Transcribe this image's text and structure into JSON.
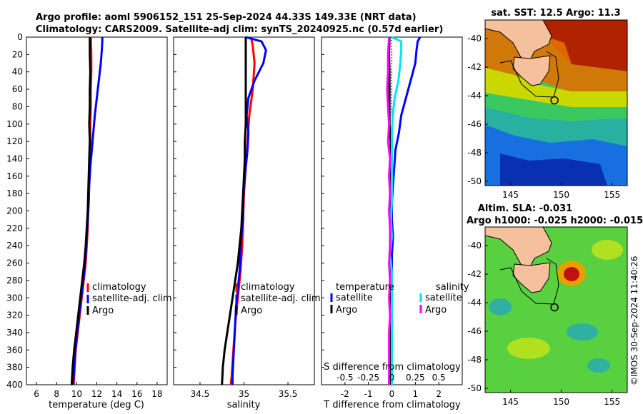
{
  "header": {
    "line1": "Argo profile: aoml 5906152_151 25-Sep-2024 44.33S 149.33E (NRT data)",
    "line2": "Climatology: CARS2009. Satellite-adj clim: synTS_20240925.nc (0.57d earlier)"
  },
  "colors": {
    "climatology": "#ff0000",
    "satellite": "#0000ff",
    "argo": "#000000",
    "sat_t_diff": "#0000ff",
    "sat_s_diff": "#00e5ee",
    "argo_s_diff": "#ff00ff",
    "land": "#f5c09c"
  },
  "chart_data": [
    {
      "id": "temperature",
      "type": "line",
      "xlabel": "temperature (deg C)",
      "ylabel": "",
      "xlim": [
        5,
        19
      ],
      "ylim": [
        400,
        0
      ],
      "xticks": [
        6,
        8,
        10,
        12,
        14,
        16,
        18
      ],
      "yticks": [
        0,
        20,
        40,
        60,
        80,
        100,
        120,
        140,
        160,
        180,
        200,
        220,
        240,
        260,
        280,
        300,
        320,
        340,
        360,
        380,
        400
      ],
      "legend": [
        "climatology",
        "satellite-adj. clim",
        "Argo"
      ],
      "series": [
        {
          "name": "climatology",
          "color": "#ff0000",
          "depth": [
            0,
            20,
            40,
            60,
            80,
            100,
            120,
            140,
            160,
            180,
            200,
            220,
            240,
            260,
            280,
            300,
            320,
            340,
            360,
            380,
            400
          ],
          "values": [
            11.4,
            11.45,
            11.45,
            11.4,
            11.4,
            11.35,
            11.35,
            11.3,
            11.25,
            11.2,
            11.15,
            11.1,
            11.0,
            10.9,
            10.7,
            10.5,
            10.3,
            10.1,
            9.9,
            9.8,
            9.7
          ]
        },
        {
          "name": "satellite-adj. clim",
          "color": "#0000ff",
          "depth": [
            0,
            5,
            15,
            30,
            50,
            70,
            90,
            110,
            130,
            150,
            170,
            190,
            210,
            230,
            250,
            270,
            290,
            310,
            330,
            350,
            370,
            390,
            400
          ],
          "values": [
            12.55,
            12.55,
            12.5,
            12.4,
            12.2,
            12.0,
            11.8,
            11.65,
            11.5,
            11.35,
            11.25,
            11.2,
            11.1,
            11.0,
            10.9,
            10.75,
            10.55,
            10.35,
            10.15,
            9.95,
            9.8,
            9.7,
            9.65
          ]
        },
        {
          "name": "Argo",
          "color": "#000000",
          "depth": [
            0,
            20,
            40,
            60,
            80,
            100,
            120,
            140,
            160,
            180,
            200,
            220,
            240,
            260,
            280,
            300,
            320,
            340,
            360,
            380,
            400
          ],
          "values": [
            11.3,
            11.3,
            11.35,
            11.3,
            11.3,
            11.25,
            11.3,
            11.25,
            11.2,
            11.15,
            11.1,
            11.0,
            10.9,
            10.75,
            10.55,
            10.35,
            10.15,
            9.95,
            9.75,
            9.6,
            9.5
          ]
        }
      ]
    },
    {
      "id": "salinity",
      "type": "line",
      "xlabel": "salinity",
      "ylabel": "",
      "xlim": [
        34.2,
        35.8
      ],
      "ylim": [
        400,
        0
      ],
      "xticks": [
        34.5,
        35,
        35.5
      ],
      "yticks": [
        0,
        20,
        40,
        60,
        80,
        100,
        120,
        140,
        160,
        180,
        200,
        220,
        240,
        260,
        280,
        300,
        320,
        340,
        360,
        380,
        400
      ],
      "legend": [
        "climatology",
        "satellite-adj. clim",
        "Argo"
      ],
      "series": [
        {
          "name": "climatology",
          "color": "#ff0000",
          "depth": [
            0,
            10,
            30,
            60,
            90,
            120,
            150,
            180,
            210,
            240,
            270,
            300,
            330,
            360,
            390,
            400
          ],
          "values": [
            35.08,
            35.1,
            35.12,
            35.1,
            35.06,
            35.04,
            35.02,
            35.0,
            34.99,
            34.98,
            34.96,
            34.93,
            34.9,
            34.88,
            34.86,
            34.85
          ]
        },
        {
          "name": "satellite-adj. clim",
          "color": "#0000ff",
          "depth": [
            0,
            5,
            15,
            30,
            50,
            70,
            90,
            110,
            130,
            150,
            170,
            190,
            210,
            230,
            250,
            270,
            290,
            310,
            330,
            350,
            370,
            390,
            400
          ],
          "values": [
            35.02,
            35.2,
            35.25,
            35.22,
            35.12,
            35.05,
            35.03,
            35.05,
            35.04,
            35.02,
            35.0,
            34.99,
            34.99,
            34.97,
            34.96,
            34.95,
            34.93,
            34.91,
            34.9,
            34.89,
            34.88,
            34.87,
            34.87
          ]
        },
        {
          "name": "Argo",
          "color": "#000000",
          "depth": [
            0,
            20,
            40,
            60,
            80,
            100,
            120,
            140,
            160,
            180,
            200,
            220,
            240,
            260,
            280,
            300,
            320,
            340,
            360,
            380,
            400
          ],
          "values": [
            35.02,
            35.02,
            35.02,
            35.02,
            35.02,
            35.02,
            35.01,
            35.01,
            35.0,
            34.99,
            34.98,
            34.97,
            34.95,
            34.93,
            34.9,
            34.87,
            34.84,
            34.81,
            34.78,
            34.76,
            34.75
          ]
        }
      ]
    },
    {
      "id": "difference",
      "type": "line",
      "xlabel": "T difference from climatology",
      "top_label": "S difference from climatology",
      "xlim": [
        -3,
        3
      ],
      "ylim": [
        400,
        0
      ],
      "xticks": [
        -2,
        -1,
        0,
        1,
        2
      ],
      "s_xlim": [
        -0.75,
        0.75
      ],
      "s_xticks": [
        -0.5,
        -0.25,
        0,
        0.25,
        0.5
      ],
      "s_xtick_labels": [
        "-0.5",
        "-0.25",
        "0",
        "0.25",
        "0.5"
      ],
      "yticks": [
        0,
        20,
        40,
        60,
        80,
        100,
        120,
        140,
        160,
        180,
        200,
        220,
        240,
        260,
        280,
        300,
        320,
        340,
        360,
        380,
        400
      ],
      "legend_headers": [
        "temperature",
        "salinity"
      ],
      "legend_t": [
        "satellite",
        "Argo"
      ],
      "legend_s": [
        "satellite",
        "Argo"
      ],
      "series": [
        {
          "name": "temperature satellite",
          "color": "#0000ff",
          "depth": [
            0,
            5,
            15,
            30,
            50,
            70,
            90,
            110,
            130,
            150,
            170,
            190,
            210,
            230,
            250,
            270,
            290,
            310,
            330,
            350,
            370,
            390,
            400
          ],
          "values": [
            1.2,
            1.1,
            1.05,
            1.0,
            0.8,
            0.6,
            0.4,
            0.3,
            0.15,
            0.1,
            0.05,
            0.0,
            0.0,
            0.05,
            0.0,
            0.0,
            0.0,
            0.0,
            0.0,
            0.0,
            0.0,
            0.0,
            0.0
          ]
        },
        {
          "name": "temperature Argo",
          "color": "#000000",
          "depth": [
            0,
            20,
            40,
            60,
            80,
            100,
            120,
            140,
            160,
            180,
            200,
            220,
            240,
            260,
            280,
            300,
            320,
            340,
            360,
            380,
            400
          ],
          "values": [
            -0.1,
            -0.12,
            -0.1,
            -0.1,
            -0.1,
            -0.1,
            -0.05,
            -0.05,
            -0.05,
            -0.05,
            -0.05,
            -0.05,
            -0.05,
            -0.05,
            -0.05,
            -0.05,
            -0.05,
            -0.05,
            -0.05,
            -0.05,
            -0.05
          ]
        },
        {
          "name": "salinity satellite",
          "color": "#00e5ee",
          "depth": [
            0,
            5,
            15,
            30,
            50,
            70,
            90,
            110,
            130,
            150,
            170,
            190,
            210,
            230,
            250,
            270,
            290,
            310,
            330,
            350,
            370,
            390,
            400
          ],
          "values": [
            0.0,
            0.1,
            0.1,
            0.09,
            0.07,
            0.03,
            0.01,
            0.0,
            0.0,
            0.0,
            0.0,
            0.0,
            -0.01,
            0.0,
            -0.02,
            0.0,
            0.0,
            0.0,
            0.0,
            0.0,
            0.0,
            0.0,
            0.0
          ]
        },
        {
          "name": "salinity Argo",
          "color": "#ff00ff",
          "depth": [
            0,
            20,
            40,
            60,
            80,
            100,
            120,
            140,
            160,
            180,
            200,
            220,
            240,
            260,
            280,
            300,
            320,
            340,
            360,
            380,
            400
          ],
          "values": [
            -0.03,
            -0.04,
            -0.04,
            -0.05,
            -0.04,
            -0.03,
            -0.04,
            -0.02,
            -0.03,
            -0.02,
            -0.03,
            -0.02,
            -0.02,
            -0.03,
            -0.02,
            -0.03,
            -0.02,
            -0.03,
            -0.03,
            -0.03,
            -0.03
          ]
        }
      ]
    },
    {
      "id": "sst-map",
      "type": "heatmap",
      "title": "sat. SST: 12.5 Argo: 11.3",
      "xlim": [
        142.5,
        156.5
      ],
      "ylim": [
        -50.3,
        -38.7
      ],
      "xticks": [
        145,
        150,
        155
      ],
      "yticks": [
        -40,
        -42,
        -44,
        -46,
        -48,
        -50
      ],
      "float_position": {
        "lon": 149.33,
        "lat": -44.33
      }
    },
    {
      "id": "sla-map",
      "type": "heatmap",
      "title_line1": "Altim. SLA: -0.031",
      "title_line2": "Argo h1000: -0.025 h2000: -0.015",
      "xlim": [
        142.5,
        156.5
      ],
      "ylim": [
        -50.3,
        -38.7
      ],
      "xticks": [
        145,
        150,
        155
      ],
      "yticks": [
        -40,
        -42,
        -44,
        -46,
        -48,
        -50
      ],
      "float_position": {
        "lon": 149.33,
        "lat": -44.33
      }
    }
  ],
  "credit": "©IMOS 30-Sep-2024 11:40:26"
}
